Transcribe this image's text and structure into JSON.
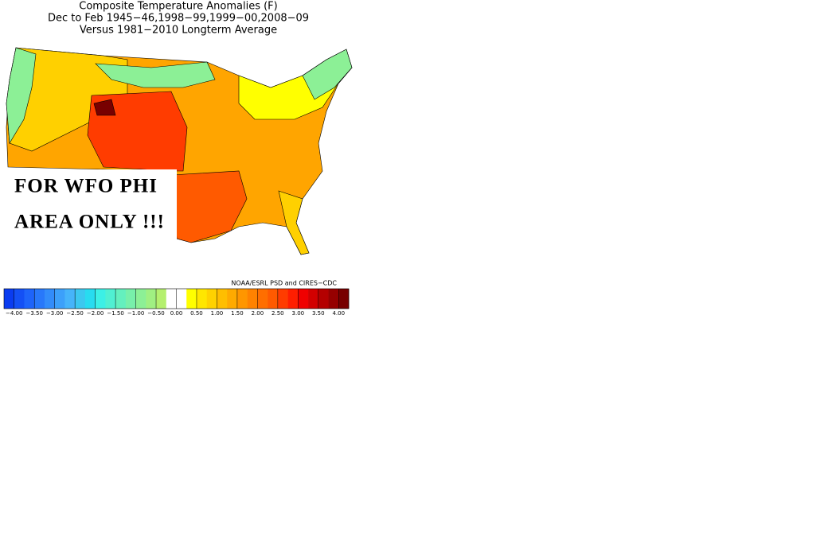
{
  "map": {
    "title": "Composite Temperature Anomalies (F)",
    "subtitle": "Dec to Feb  1945−46,1998−99,1999−00,2008−09",
    "subtitle2": "Versus 1981−2010 Longterm Average",
    "overlay": [
      "FOR WFO PHI",
      "AREA ONLY !!!"
    ],
    "credit": "NOAA/ESRL PSD and CIRES−CDC",
    "colorbar": {
      "lim": [
        -4.25,
        4.25
      ],
      "colors": [
        "#0a3cf0",
        "#1450f5",
        "#1e64fa",
        "#2878fa",
        "#328cfa",
        "#3ca0fa",
        "#46b4fa",
        "#3cc8f0",
        "#28dcf0",
        "#3cf0e6",
        "#50f0d2",
        "#64f0be",
        "#78f0aa",
        "#8cf096",
        "#a0f082",
        "#b4f06e",
        "#ffffff",
        "#ffffff",
        "#ffff00",
        "#ffe600",
        "#ffd200",
        "#ffbe00",
        "#ffaa00",
        "#ff9600",
        "#ff8200",
        "#ff6e00",
        "#ff5a00",
        "#ff3c00",
        "#ff1e00",
        "#f00000",
        "#d20000",
        "#b40000",
        "#960000",
        "#780000"
      ],
      "ticks": [
        {
          "value": -4,
          "label": "−4.00"
        },
        {
          "value": -3.5,
          "label": "−3.50"
        },
        {
          "value": -3,
          "label": "−3.00"
        },
        {
          "value": -2.5,
          "label": "−2.50"
        },
        {
          "value": -2,
          "label": "−2.00"
        },
        {
          "value": -1.5,
          "label": "−1.50"
        },
        {
          "value": -1,
          "label": "−1.00"
        },
        {
          "value": -0.5,
          "label": "−0.50"
        },
        {
          "value": 0,
          "label": "0.00"
        },
        {
          "value": 0.5,
          "label": "0.50"
        },
        {
          "value": 1,
          "label": "1.00"
        },
        {
          "value": 1.5,
          "label": "1.50"
        },
        {
          "value": 2,
          "label": "2.00"
        },
        {
          "value": 2.5,
          "label": "2.50"
        },
        {
          "value": 3,
          "label": "3.00"
        },
        {
          "value": 3.5,
          "label": "3.50"
        },
        {
          "value": 4,
          "label": "4.00"
        }
      ]
    }
  }
}
